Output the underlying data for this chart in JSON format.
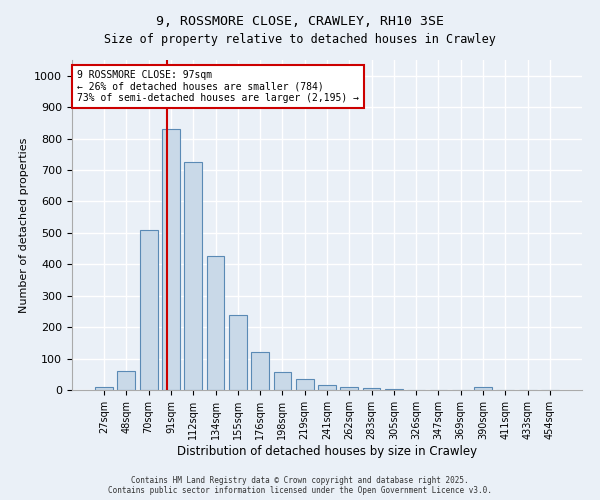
{
  "title_line1": "9, ROSSMORE CLOSE, CRAWLEY, RH10 3SE",
  "title_line2": "Size of property relative to detached houses in Crawley",
  "categories": [
    "27sqm",
    "48sqm",
    "70sqm",
    "91sqm",
    "112sqm",
    "134sqm",
    "155sqm",
    "176sqm",
    "198sqm",
    "219sqm",
    "241sqm",
    "262sqm",
    "283sqm",
    "305sqm",
    "326sqm",
    "347sqm",
    "369sqm",
    "390sqm",
    "411sqm",
    "433sqm",
    "454sqm"
  ],
  "values": [
    10,
    60,
    510,
    830,
    725,
    425,
    240,
    120,
    58,
    35,
    15,
    10,
    5,
    3,
    1,
    0,
    0,
    8,
    0,
    0,
    0
  ],
  "bar_color": "#c9d9e8",
  "bar_edgecolor": "#5a8ab5",
  "background_color": "#eaf0f7",
  "grid_color": "#ffffff",
  "ylabel": "Number of detached properties",
  "xlabel": "Distribution of detached houses by size in Crawley",
  "ylim": [
    0,
    1050
  ],
  "yticks": [
    0,
    100,
    200,
    300,
    400,
    500,
    600,
    700,
    800,
    900,
    1000
  ],
  "property_line_color": "#cc0000",
  "annotation_text": "9 ROSSMORE CLOSE: 97sqm\n← 26% of detached houses are smaller (784)\n73% of semi-detached houses are larger (2,195) →",
  "annotation_box_color": "#ffffff",
  "annotation_box_edgecolor": "#cc0000",
  "footer_line1": "Contains HM Land Registry data © Crown copyright and database right 2025.",
  "footer_line2": "Contains public sector information licensed under the Open Government Licence v3.0."
}
